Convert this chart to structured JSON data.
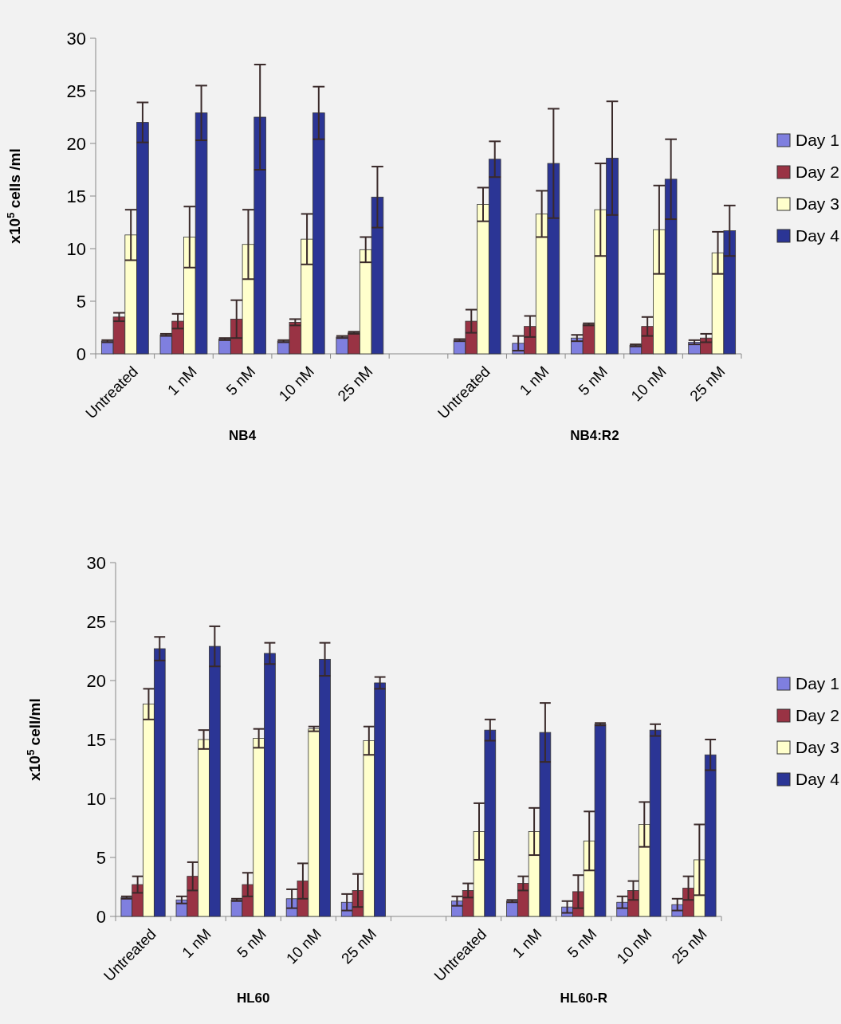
{
  "chart_data": [
    {
      "type": "bar",
      "ylabel": "x10$^{5}$ cells /ml",
      "categories": [
        "Untreated",
        "1 nM",
        "5 nM",
        "10 nM",
        "25 nM",
        null,
        "Untreated",
        "1 nM",
        "5 nM",
        "10 nM",
        "25 nM"
      ],
      "ylim": [
        0,
        30
      ],
      "yticks": [
        0,
        5,
        10,
        15,
        20,
        25,
        30
      ],
      "legend": "right",
      "annotations": [
        "NB4",
        "NB4:R2"
      ],
      "series": [
        {
          "name": "Day 1",
          "color": "#7f7fdf",
          "values": [
            1.2,
            1.8,
            1.4,
            1.2,
            1.6,
            null,
            1.3,
            1.0,
            1.5,
            0.8,
            1.1
          ],
          "errors": [
            0.1,
            0.1,
            0.1,
            0.1,
            0.1,
            null,
            0.1,
            0.7,
            0.3,
            0.1,
            0.2
          ]
        },
        {
          "name": "Day 2",
          "color": "#993344",
          "values": [
            3.5,
            3.1,
            3.3,
            3.0,
            2.0,
            null,
            3.1,
            2.6,
            2.8,
            2.6,
            1.5
          ],
          "errors": [
            0.4,
            0.7,
            1.8,
            0.3,
            0.1,
            null,
            1.1,
            1.0,
            0.1,
            0.9,
            0.4
          ]
        },
        {
          "name": "Day 3",
          "color": "#ffffcc",
          "values": [
            11.3,
            11.1,
            10.4,
            10.9,
            9.9,
            null,
            14.2,
            13.3,
            13.7,
            11.8,
            9.6
          ],
          "errors": [
            2.4,
            2.9,
            3.3,
            2.4,
            1.2,
            null,
            1.6,
            2.2,
            4.4,
            4.2,
            2.0
          ]
        },
        {
          "name": "Day 4",
          "color": "#2b3595",
          "values": [
            22.0,
            22.9,
            22.5,
            22.9,
            14.9,
            null,
            18.5,
            18.1,
            18.6,
            16.6,
            11.7
          ],
          "errors": [
            1.9,
            2.6,
            5.0,
            2.5,
            2.9,
            null,
            1.7,
            5.2,
            5.4,
            3.8,
            2.4
          ]
        }
      ]
    },
    {
      "type": "bar",
      "ylabel": "x10$^{5}$ cell/ml",
      "categories": [
        "Untreated",
        "1 nM",
        "5 nM",
        "10 nM",
        "25 nM",
        null,
        "Untreated",
        "1 nM",
        "5 nM",
        "10 nM",
        "25 nM"
      ],
      "ylim": [
        0,
        30
      ],
      "yticks": [
        0,
        5,
        10,
        15,
        20,
        25,
        30
      ],
      "legend": "right",
      "annotations": [
        "HL60",
        "HL60-R"
      ],
      "series": [
        {
          "name": "Day 1",
          "color": "#7f7fdf",
          "values": [
            1.6,
            1.4,
            1.4,
            1.5,
            1.2,
            null,
            1.3,
            1.3,
            0.8,
            1.2,
            1.0
          ],
          "errors": [
            0.1,
            0.3,
            0.1,
            0.8,
            0.7,
            null,
            0.4,
            0.1,
            0.5,
            0.5,
            0.5
          ]
        },
        {
          "name": "Day 2",
          "color": "#993344",
          "values": [
            2.7,
            3.4,
            2.7,
            3.0,
            2.2,
            null,
            2.2,
            2.8,
            2.1,
            2.2,
            2.4
          ],
          "errors": [
            0.7,
            1.2,
            1.0,
            1.5,
            1.4,
            null,
            0.6,
            0.6,
            1.4,
            0.8,
            1.0
          ]
        },
        {
          "name": "Day 3",
          "color": "#ffffcc",
          "values": [
            18.0,
            15.0,
            15.1,
            15.9,
            14.9,
            null,
            7.2,
            7.2,
            6.4,
            7.8,
            4.8
          ],
          "errors": [
            1.3,
            0.8,
            0.8,
            0.2,
            1.2,
            null,
            2.4,
            2.0,
            2.5,
            1.9,
            3.0
          ]
        },
        {
          "name": "Day 4",
          "color": "#2b3595",
          "values": [
            22.7,
            22.9,
            22.3,
            21.8,
            19.8,
            null,
            15.8,
            15.6,
            16.3,
            15.8,
            13.7
          ],
          "errors": [
            1.0,
            1.7,
            0.9,
            1.4,
            0.5,
            null,
            0.9,
            2.5,
            0.1,
            0.5,
            1.3
          ]
        }
      ]
    }
  ]
}
